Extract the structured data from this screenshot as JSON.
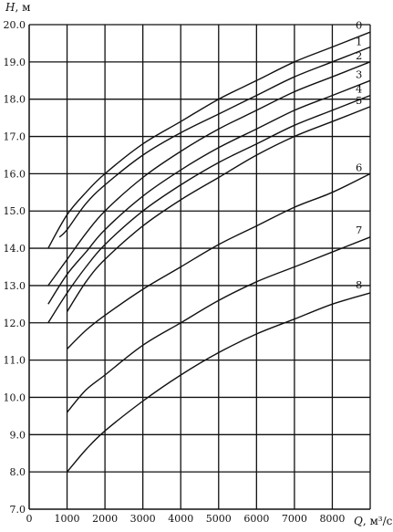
{
  "chart_data": {
    "type": "line",
    "title": "",
    "y_title": {
      "symbol": "H",
      "unit": ", м"
    },
    "x_title": {
      "symbol": "Q",
      "unit": ", м³/с"
    },
    "xlim": [
      0,
      9000
    ],
    "ylim": [
      7.0,
      20.0
    ],
    "x_ticks": [
      0,
      1000,
      2000,
      3000,
      4000,
      5000,
      6000,
      7000,
      8000
    ],
    "x_tick_labels": [
      "0",
      "1000",
      "2000",
      "3000",
      "4000",
      "5000",
      "6000",
      "7000",
      "8000"
    ],
    "y_ticks": [
      7,
      8,
      9,
      10,
      11,
      12,
      13,
      14,
      15,
      16,
      17,
      18,
      19,
      20
    ],
    "y_tick_labels": [
      "7.0",
      "8.0",
      "9.0",
      "10.0",
      "11.0",
      "12.0",
      "13.0",
      "14.0",
      "15.0",
      "16.0",
      "17.0",
      "18.0",
      "19.0",
      "20.0"
    ],
    "grid": true,
    "series": [
      {
        "name": "0",
        "x": [
          500,
          1000,
          1500,
          2000,
          3000,
          4000,
          5000,
          6000,
          7000,
          8000,
          9000
        ],
        "y": [
          14.0,
          14.9,
          15.5,
          16.0,
          16.8,
          17.4,
          18.0,
          18.5,
          19.0,
          19.4,
          19.8
        ]
      },
      {
        "name": "1",
        "x": [
          800,
          1000,
          1500,
          2000,
          3000,
          4000,
          5000,
          6000,
          7000,
          8000,
          9000
        ],
        "y": [
          14.3,
          14.5,
          15.2,
          15.7,
          16.5,
          17.1,
          17.6,
          18.1,
          18.6,
          19.0,
          19.4
        ]
      },
      {
        "name": "2",
        "x": [
          500,
          1000,
          1500,
          2000,
          3000,
          4000,
          5000,
          6000,
          7000,
          8000,
          9000
        ],
        "y": [
          13.0,
          13.7,
          14.4,
          15.0,
          15.9,
          16.6,
          17.2,
          17.7,
          18.2,
          18.6,
          19.0
        ]
      },
      {
        "name": "3",
        "x": [
          500,
          1000,
          1500,
          2000,
          3000,
          4000,
          5000,
          6000,
          7000,
          8000,
          9000
        ],
        "y": [
          12.5,
          13.3,
          13.9,
          14.5,
          15.4,
          16.1,
          16.7,
          17.2,
          17.7,
          18.1,
          18.5
        ]
      },
      {
        "name": "4",
        "x": [
          500,
          1000,
          1500,
          2000,
          3000,
          4000,
          5000,
          6000,
          7000,
          8000,
          9000
        ],
        "y": [
          12.0,
          12.8,
          13.5,
          14.1,
          15.0,
          15.7,
          16.3,
          16.8,
          17.3,
          17.7,
          18.1
        ]
      },
      {
        "name": "5",
        "x": [
          1000,
          1500,
          2000,
          3000,
          4000,
          5000,
          6000,
          7000,
          8000,
          9000
        ],
        "y": [
          12.3,
          13.1,
          13.7,
          14.6,
          15.3,
          15.9,
          16.5,
          17.0,
          17.4,
          17.8
        ]
      },
      {
        "name": "6",
        "x": [
          1000,
          1500,
          2000,
          3000,
          4000,
          5000,
          6000,
          7000,
          8000,
          9000
        ],
        "y": [
          11.3,
          11.8,
          12.2,
          12.9,
          13.5,
          14.1,
          14.6,
          15.1,
          15.5,
          16.0
        ]
      },
      {
        "name": "7",
        "x": [
          1000,
          1500,
          2000,
          3000,
          4000,
          5000,
          6000,
          7000,
          8000,
          9000
        ],
        "y": [
          9.6,
          10.2,
          10.6,
          11.4,
          12.0,
          12.6,
          13.1,
          13.5,
          13.9,
          14.3
        ]
      },
      {
        "name": "8",
        "x": [
          1000,
          1500,
          2000,
          3000,
          4000,
          5000,
          6000,
          7000,
          8000,
          9000
        ],
        "y": [
          8.0,
          8.6,
          9.1,
          9.9,
          10.6,
          11.2,
          11.7,
          12.1,
          12.5,
          12.8
        ]
      }
    ]
  }
}
